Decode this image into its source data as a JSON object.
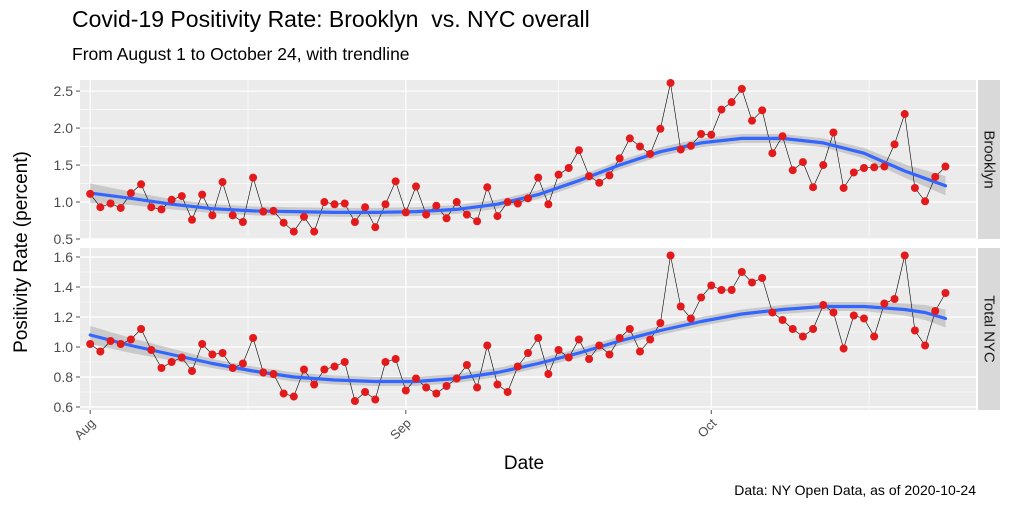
{
  "title": "Covid-19 Positivity Rate: Brooklyn  vs. NYC overall",
  "subtitle": "From August 1 to October 24, with trendline",
  "caption": "Data: NY Open Data, as of 2020-10-24",
  "colors": {
    "panel_bg": "#ebebeb",
    "strip_bg": "#d9d9d9",
    "points": "#e31a1c",
    "trend": "#3366ff",
    "ribbon": "#bdbdbd"
  },
  "chart_data": {
    "type": "line",
    "xlabel": "Date",
    "ylabel": "Positivity Rate (percent)",
    "x_tick_labels": [
      "Aug",
      "Sep",
      "Oct"
    ],
    "x_tick_days": [
      0,
      31,
      61
    ],
    "xlim_days": [
      -1,
      87
    ],
    "panels": [
      {
        "name": "Brooklyn",
        "ylim": [
          0.5,
          2.65
        ],
        "y_ticks": [
          0.5,
          1.0,
          1.5,
          2.0,
          2.5
        ],
        "y_tick_labels": [
          "0.5",
          "1.0",
          "1.5",
          "2.0",
          "2.5"
        ],
        "values": [
          1.11,
          0.93,
          0.98,
          0.92,
          1.12,
          1.24,
          0.93,
          0.9,
          1.03,
          1.08,
          0.76,
          1.1,
          0.82,
          1.27,
          0.82,
          0.73,
          1.33,
          0.87,
          0.88,
          0.72,
          0.6,
          0.8,
          0.6,
          1.0,
          0.97,
          0.98,
          0.73,
          0.93,
          0.66,
          0.97,
          1.28,
          0.86,
          1.21,
          0.83,
          0.95,
          0.78,
          1.0,
          0.83,
          0.74,
          1.2,
          0.81,
          1.0,
          0.98,
          1.05,
          1.33,
          0.97,
          1.37,
          1.46,
          1.7,
          1.35,
          1.26,
          1.36,
          1.59,
          1.86,
          1.75,
          1.65,
          1.99,
          2.61,
          1.71,
          1.76,
          1.92,
          1.91,
          2.25,
          2.35,
          2.53,
          2.1,
          2.24,
          1.66,
          1.89,
          1.43,
          1.54,
          1.2,
          1.5,
          1.94,
          1.19,
          1.4,
          1.46,
          1.47,
          1.48,
          1.78,
          2.19,
          1.19,
          1.01,
          1.34,
          1.48
        ],
        "trend": [
          1.12,
          1.05,
          0.97,
          0.91,
          0.88,
          0.87,
          0.86,
          0.86,
          0.87,
          0.9,
          0.97,
          1.1,
          1.29,
          1.5,
          1.68,
          1.8,
          1.86,
          1.86,
          1.8,
          1.66,
          1.42,
          1.22
        ],
        "trend_days": [
          0,
          4,
          8,
          12,
          16,
          20,
          24,
          28,
          32,
          36,
          40,
          44,
          48,
          52,
          56,
          60,
          64,
          68,
          72,
          76,
          80,
          84
        ],
        "ribbon_halfwidth": [
          0.13,
          0.09,
          0.07,
          0.06,
          0.06,
          0.06,
          0.06,
          0.06,
          0.06,
          0.06,
          0.06,
          0.06,
          0.06,
          0.06,
          0.06,
          0.06,
          0.06,
          0.06,
          0.06,
          0.07,
          0.09,
          0.13
        ]
      },
      {
        "name": "Total NYC",
        "ylim": [
          0.58,
          1.66
        ],
        "y_ticks": [
          0.6,
          0.8,
          1.0,
          1.2,
          1.4,
          1.6
        ],
        "y_tick_labels": [
          "0.6",
          "0.8",
          "1.0",
          "1.2",
          "1.4",
          "1.6"
        ],
        "values": [
          1.02,
          0.97,
          1.04,
          1.02,
          1.05,
          1.12,
          0.98,
          0.86,
          0.9,
          0.93,
          0.84,
          1.02,
          0.95,
          0.96,
          0.86,
          0.89,
          1.06,
          0.83,
          0.82,
          0.69,
          0.67,
          0.85,
          0.75,
          0.85,
          0.87,
          0.9,
          0.64,
          0.7,
          0.65,
          0.9,
          0.92,
          0.71,
          0.79,
          0.73,
          0.69,
          0.74,
          0.79,
          0.88,
          0.73,
          1.01,
          0.75,
          0.7,
          0.87,
          0.96,
          1.06,
          0.82,
          0.98,
          0.93,
          1.05,
          0.92,
          1.01,
          0.95,
          1.06,
          1.12,
          0.97,
          1.05,
          1.16,
          1.61,
          1.27,
          1.19,
          1.33,
          1.41,
          1.38,
          1.38,
          1.5,
          1.43,
          1.46,
          1.23,
          1.18,
          1.12,
          1.07,
          1.12,
          1.28,
          1.23,
          0.99,
          1.21,
          1.19,
          1.07,
          1.29,
          1.32,
          1.61,
          1.11,
          1.01,
          1.24,
          1.36
        ],
        "trend": [
          1.08,
          1.01,
          0.95,
          0.89,
          0.84,
          0.8,
          0.78,
          0.77,
          0.77,
          0.79,
          0.83,
          0.89,
          0.96,
          1.04,
          1.11,
          1.17,
          1.22,
          1.25,
          1.27,
          1.27,
          1.25,
          1.23,
          1.19
        ],
        "trend_days": [
          0,
          4,
          8,
          12,
          16,
          20,
          24,
          28,
          32,
          36,
          40,
          44,
          48,
          52,
          56,
          60,
          64,
          68,
          72,
          76,
          80,
          82,
          84
        ],
        "ribbon_halfwidth": [
          0.06,
          0.05,
          0.04,
          0.03,
          0.03,
          0.03,
          0.03,
          0.03,
          0.03,
          0.03,
          0.03,
          0.03,
          0.03,
          0.03,
          0.03,
          0.03,
          0.03,
          0.03,
          0.03,
          0.03,
          0.04,
          0.05,
          0.06
        ]
      }
    ]
  }
}
